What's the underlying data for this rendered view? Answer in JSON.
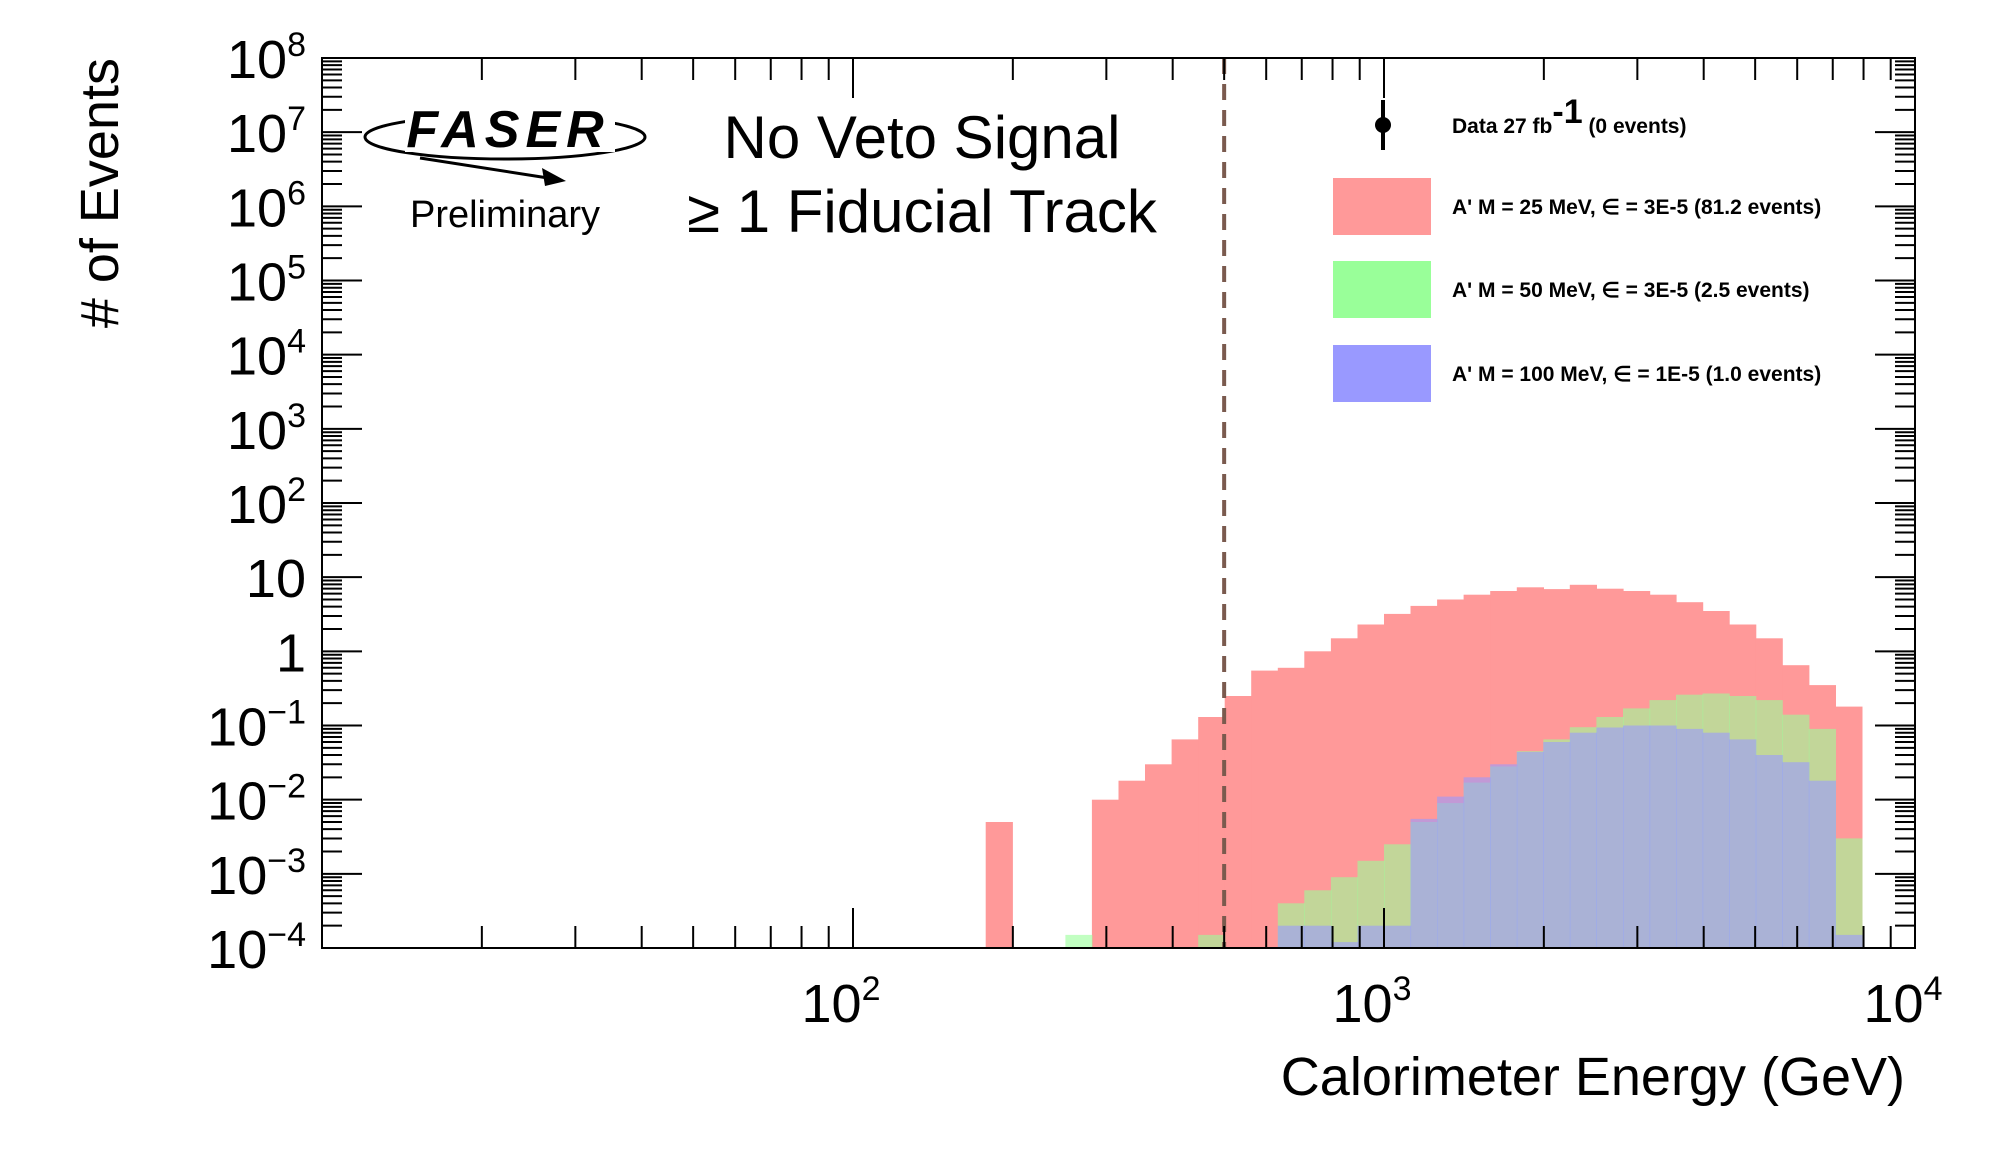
{
  "chart_data": {
    "type": "bar",
    "title_lines": [
      "No Veto Signal",
      "≥ 1 Fiducial Track"
    ],
    "logo": {
      "text": "FASER",
      "subtitle": "Preliminary"
    },
    "xlabel": "Calorimeter Energy (GeV)",
    "ylabel": "# of Events",
    "x_scale": "log",
    "y_scale": "log",
    "xlim": [
      10,
      10000
    ],
    "ylim": [
      0.0001,
      100000000
    ],
    "x_tick_labels": [
      {
        "value": 100,
        "base": "10",
        "exp": "2"
      },
      {
        "value": 1000,
        "base": "10",
        "exp": "3"
      },
      {
        "value": 10000,
        "base": "10",
        "exp": "4"
      }
    ],
    "y_tick_labels": [
      {
        "value": 100000000,
        "base": "10",
        "exp": "8"
      },
      {
        "value": 10000000,
        "base": "10",
        "exp": "7"
      },
      {
        "value": 1000000,
        "base": "10",
        "exp": "6"
      },
      {
        "value": 100000,
        "base": "10",
        "exp": "5"
      },
      {
        "value": 10000,
        "base": "10",
        "exp": "4"
      },
      {
        "value": 1000,
        "base": "10",
        "exp": "3"
      },
      {
        "value": 100,
        "base": "10",
        "exp": "2"
      },
      {
        "value": 10,
        "base": "10",
        "exp": ""
      },
      {
        "value": 1,
        "base": "1",
        "exp": ""
      },
      {
        "value": 0.1,
        "base": "10",
        "exp": "−1"
      },
      {
        "value": 0.01,
        "base": "10",
        "exp": "−2"
      },
      {
        "value": 0.001,
        "base": "10",
        "exp": "−3"
      },
      {
        "value": 0.0001,
        "base": "10",
        "exp": "−4"
      }
    ],
    "bin_edges_gev": [
      177.8,
      199.5,
      223.9,
      251.2,
      281.8,
      316.2,
      354.8,
      398.1,
      446.7,
      501.2,
      562.3,
      631.0,
      707.9,
      794.3,
      891.3,
      1000.0,
      1122.0,
      1258.9,
      1412.5,
      1584.9,
      1778.3,
      1995.3,
      2238.7,
      2511.9,
      2818.4,
      3162.3,
      3548.1,
      3981.1,
      4466.8,
      5011.9,
      5623.4,
      6309.6,
      7079.5,
      7943.3
    ],
    "cut_line": {
      "x": 500,
      "style": "dashed",
      "color": "#7a5a4e"
    },
    "series": [
      {
        "name": "A' M = 25 MeV,  ∈ = 3E-5 (81.2 events)",
        "color": "#ff9999",
        "values": [
          0.005,
          0,
          0,
          0,
          0.01,
          0.018,
          0.03,
          0.065,
          0.13,
          0.25,
          0.55,
          0.6,
          1.0,
          1.5,
          2.3,
          3.2,
          4.1,
          5.0,
          5.8,
          6.5,
          7.3,
          6.9,
          7.9,
          7.0,
          6.5,
          5.8,
          4.6,
          3.5,
          2.3,
          1.5,
          0.65,
          0.35,
          0.18,
          0
        ],
        "visible_edge_value": 0.1
      },
      {
        "name": "A' M = 50 MeV,  ∈ = 3E-5 (2.5 events)",
        "color": "#99ff99",
        "values": [
          0,
          0,
          0,
          0.00015,
          0,
          0,
          0,
          0,
          0.00015,
          0.0001,
          0.0001,
          0.0004,
          0.0006,
          0.0009,
          0.0015,
          0.0025,
          0.005,
          0.009,
          0.017,
          0.028,
          0.045,
          0.065,
          0.095,
          0.13,
          0.17,
          0.22,
          0.26,
          0.27,
          0.25,
          0.22,
          0.14,
          0.09,
          0.003,
          0
        ]
      },
      {
        "name": "A' M = 100 MeV,  ∈ = 1E-5 (1.0 events)",
        "color": "#9999ff",
        "values": [
          0,
          0,
          0,
          0,
          0,
          0,
          0,
          0,
          0,
          0,
          8e-05,
          0.0002,
          0.0002,
          0.00012,
          0.0002,
          0.0002,
          0.0055,
          0.011,
          0.02,
          0.03,
          0.044,
          0.06,
          0.08,
          0.094,
          0.1,
          0.1,
          0.09,
          0.08,
          0.065,
          0.04,
          0.032,
          0.018,
          0.00015,
          0
        ]
      }
    ],
    "data_series": {
      "name": "Data 27 fb",
      "name_sup": "-1",
      "name_suffix": " (0 events)",
      "values": []
    },
    "legend_position": "top-right",
    "grid": false
  }
}
